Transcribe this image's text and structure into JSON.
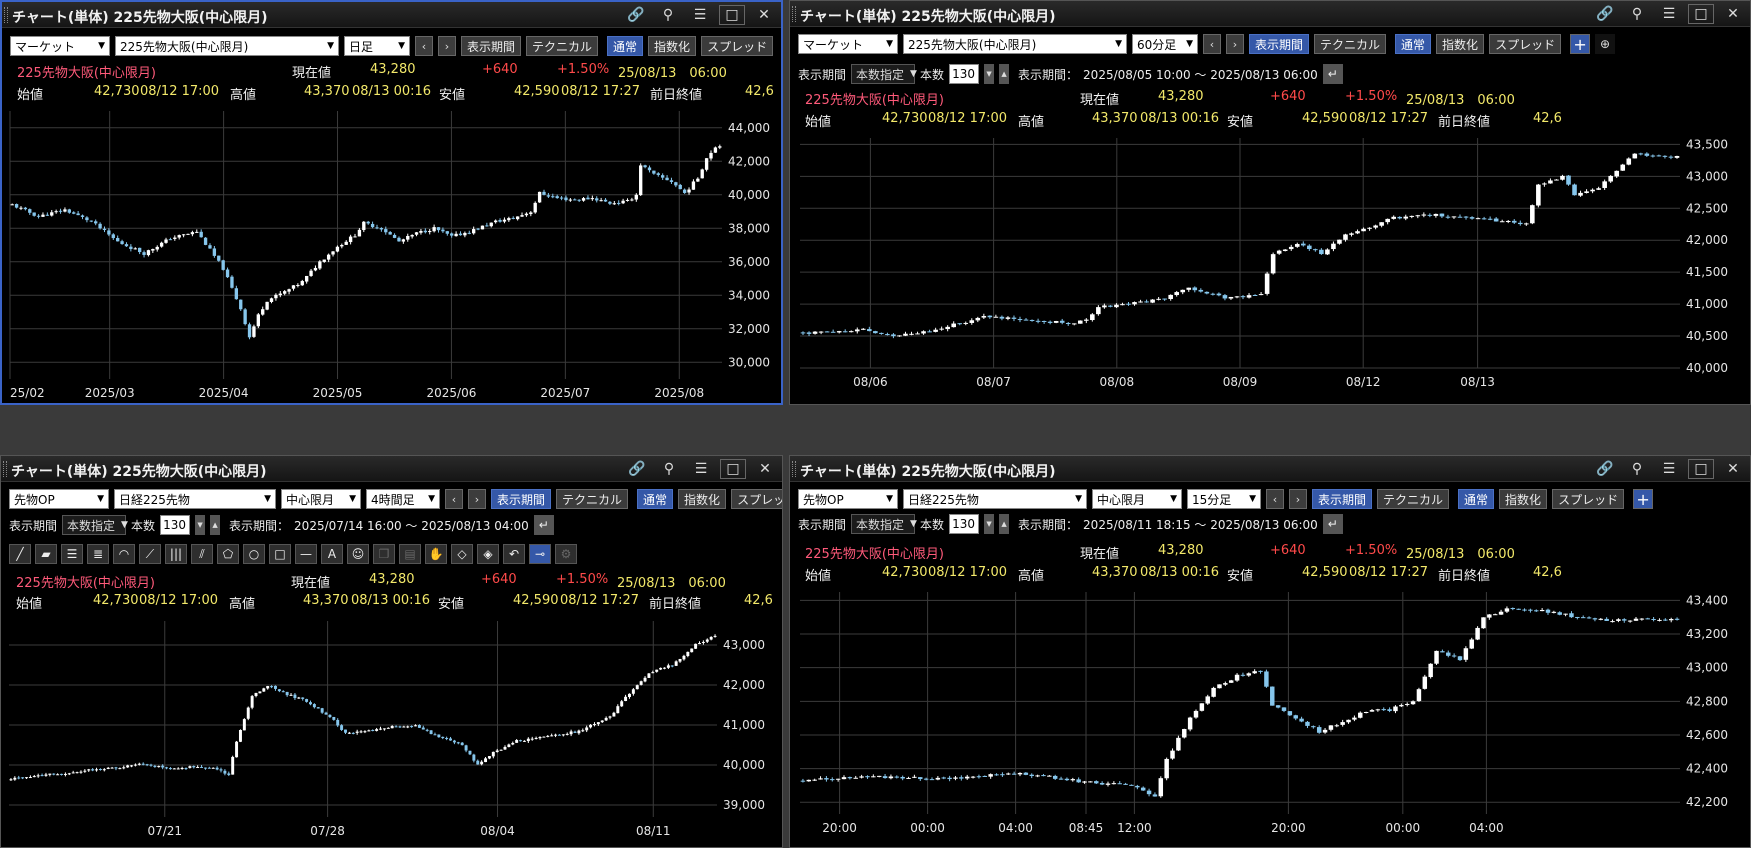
{
  "common": {
    "window_title": "チャート(単体) 225先物大阪(中心限月)",
    "instrument": "225先物大阪(中心限月)",
    "labels": {
      "current": "現在値",
      "open": "始値",
      "high": "高値",
      "low": "安値",
      "prev_close": "前日終値",
      "period": "表示期間",
      "range_select": "本数指定",
      "bars": "本数",
      "period_range": "表示期間："
    },
    "buttons": {
      "period": "表示期間",
      "technical": "テクニカル",
      "normal": "通常",
      "index": "指数化",
      "spread": "スプレッド"
    },
    "quote": {
      "current": "43,280",
      "change": "+640",
      "change_pct": "+1.50%",
      "datetime": "25/08/13　06:00",
      "open": "42,730",
      "open_time": "08/12 17:00",
      "high": "43,370",
      "high_time": "08/13 00:16",
      "low": "42,590",
      "low_time": "08/12 17:27",
      "prev_close": "42,6"
    },
    "colors": {
      "up": "#ffffff",
      "down": "#86c6ec",
      "grid": "#3b3b3b",
      "active_border": "#3a63c8",
      "accent": "#3558a8"
    }
  },
  "panels": [
    {
      "id": "daily",
      "market": "マーケット",
      "symbol": "225先物大阪(中心限月)",
      "interval": "日足",
      "chart_data": {
        "type": "candlestick",
        "x_ticks": [
          "25/02",
          "2025/03",
          "2025/04",
          "2025/05",
          "2025/06",
          "2025/07",
          "2025/08"
        ],
        "y_ticks": [
          "44,000",
          "42,000",
          "40,000",
          "38,000",
          "36,000",
          "34,000",
          "32,000",
          "30,000"
        ],
        "ylim": [
          29000,
          45000
        ],
        "close_path": [
          [
            0,
            39400
          ],
          [
            6,
            38700
          ],
          [
            12,
            39100
          ],
          [
            18,
            38400
          ],
          [
            24,
            37200
          ],
          [
            30,
            36500
          ],
          [
            36,
            37400
          ],
          [
            42,
            37800
          ],
          [
            48,
            35600
          ],
          [
            52,
            33200
          ],
          [
            54,
            31500
          ],
          [
            56,
            32800
          ],
          [
            58,
            33700
          ],
          [
            62,
            34200
          ],
          [
            66,
            34800
          ],
          [
            70,
            36000
          ],
          [
            74,
            36900
          ],
          [
            78,
            37600
          ],
          [
            80,
            38300
          ],
          [
            84,
            38000
          ],
          [
            88,
            37200
          ],
          [
            92,
            37700
          ],
          [
            96,
            38000
          ],
          [
            100,
            37500
          ],
          [
            104,
            37800
          ],
          [
            110,
            38400
          ],
          [
            114,
            38600
          ],
          [
            118,
            39000
          ],
          [
            120,
            40100
          ],
          [
            124,
            39800
          ],
          [
            128,
            39700
          ],
          [
            132,
            39800
          ],
          [
            136,
            39500
          ],
          [
            140,
            39600
          ],
          [
            142,
            40000
          ],
          [
            143,
            41800
          ],
          [
            146,
            41200
          ],
          [
            150,
            40800
          ],
          [
            153,
            40100
          ],
          [
            156,
            41000
          ],
          [
            158,
            42200
          ],
          [
            160,
            42900
          ]
        ]
      }
    },
    {
      "id": "h60",
      "market": "マーケット",
      "symbol": "225先物大阪(中心限月)",
      "interval": "60分足",
      "bars": "130",
      "range_text": "2025/08/05 10:00 ～ 2025/08/13 06:00",
      "chart_data": {
        "type": "candlestick",
        "x_ticks": [
          "08/06",
          "08/07",
          "08/08",
          "08/09",
          "08/12",
          "08/13"
        ],
        "y_ticks": [
          "43,500",
          "43,000",
          "42,500",
          "42,000",
          "41,500",
          "41,000",
          "40,500",
          "40,000"
        ],
        "ylim": [
          40000,
          43600
        ],
        "close_path": [
          [
            0,
            40550
          ],
          [
            10,
            40600
          ],
          [
            16,
            40500
          ],
          [
            22,
            40600
          ],
          [
            26,
            40700
          ],
          [
            30,
            40800
          ],
          [
            38,
            40750
          ],
          [
            44,
            40700
          ],
          [
            47,
            40750
          ],
          [
            49,
            40950
          ],
          [
            54,
            41000
          ],
          [
            60,
            41100
          ],
          [
            64,
            41250
          ],
          [
            70,
            41100
          ],
          [
            76,
            41150
          ],
          [
            78,
            41800
          ],
          [
            82,
            41950
          ],
          [
            86,
            41800
          ],
          [
            90,
            42100
          ],
          [
            94,
            42200
          ],
          [
            98,
            42350
          ],
          [
            104,
            42400
          ],
          [
            110,
            42350
          ],
          [
            116,
            42300
          ],
          [
            120,
            42250
          ],
          [
            122,
            42850
          ],
          [
            126,
            43000
          ],
          [
            128,
            42700
          ],
          [
            132,
            42800
          ],
          [
            134,
            43000
          ],
          [
            136,
            43200
          ],
          [
            138,
            43350
          ],
          [
            142,
            43300
          ],
          [
            145,
            43300
          ]
        ]
      }
    },
    {
      "id": "h4",
      "market": "先物OP",
      "symbol": "日経225先物",
      "contract": "中心限月",
      "interval": "4時間足",
      "bars": "130",
      "range_text": "2025/07/14 16:00 ～ 2025/08/13 04:00",
      "tools": [
        "line-tool",
        "ray-tool",
        "hline-tool",
        "channel-tool",
        "arc-tool",
        "fan-tool",
        "fib-tool",
        "pitchfork-tool",
        "pentagon-tool",
        "circle-tool",
        "rect-tool",
        "hbar-tool",
        "text-tool",
        "icon-tool",
        "copy-tool",
        "paste-tool",
        "hand-tool",
        "erase-tool",
        "erase-all-tool",
        "undo-tool",
        "magnet-tool",
        "settings-tool"
      ],
      "icon_tool_label": "A",
      "chart_data": {
        "type": "candlestick",
        "x_ticks": [
          "07/21",
          "07/28",
          "08/04",
          "08/11"
        ],
        "y_ticks": [
          "43,000",
          "42,000",
          "41,000",
          "40,000",
          "39,000"
        ],
        "ylim": [
          38700,
          43600
        ],
        "close_path": [
          [
            0,
            39650
          ],
          [
            8,
            39750
          ],
          [
            16,
            39800
          ],
          [
            22,
            39900
          ],
          [
            28,
            39950
          ],
          [
            34,
            40050
          ],
          [
            40,
            39900
          ],
          [
            46,
            39950
          ],
          [
            52,
            39950
          ],
          [
            56,
            39750
          ],
          [
            58,
            40600
          ],
          [
            62,
            41700
          ],
          [
            66,
            42000
          ],
          [
            70,
            41800
          ],
          [
            76,
            41600
          ],
          [
            82,
            41200
          ],
          [
            86,
            40800
          ],
          [
            92,
            40850
          ],
          [
            98,
            40950
          ],
          [
            104,
            41000
          ],
          [
            110,
            40700
          ],
          [
            116,
            40500
          ],
          [
            120,
            40000
          ],
          [
            124,
            40300
          ],
          [
            130,
            40600
          ],
          [
            138,
            40700
          ],
          [
            146,
            40850
          ],
          [
            154,
            41200
          ],
          [
            158,
            41700
          ],
          [
            164,
            42300
          ],
          [
            170,
            42500
          ],
          [
            176,
            43000
          ],
          [
            180,
            43200
          ]
        ]
      }
    },
    {
      "id": "m15",
      "market": "先物OP",
      "symbol": "日経225先物",
      "contract": "中心限月",
      "interval": "15分足",
      "bars": "130",
      "range_text": "2025/08/11 18:15 ～ 2025/08/13 06:00",
      "chart_data": {
        "type": "candlestick",
        "x_ticks": [
          "20:00",
          "00:00",
          "04:00",
          "08:45",
          "12:00",
          "20:00",
          "00:00",
          "04:00"
        ],
        "y_ticks": [
          "43,400",
          "43,200",
          "43,000",
          "42,800",
          "42,600",
          "42,400",
          "42,200"
        ],
        "ylim": [
          42130,
          43450
        ],
        "close_path": [
          [
            0,
            42330
          ],
          [
            12,
            42350
          ],
          [
            24,
            42340
          ],
          [
            36,
            42370
          ],
          [
            42,
            42350
          ],
          [
            48,
            42320
          ],
          [
            56,
            42300
          ],
          [
            60,
            42230
          ],
          [
            62,
            42450
          ],
          [
            66,
            42700
          ],
          [
            70,
            42880
          ],
          [
            74,
            42950
          ],
          [
            78,
            42980
          ],
          [
            80,
            42780
          ],
          [
            84,
            42700
          ],
          [
            88,
            42620
          ],
          [
            92,
            42680
          ],
          [
            96,
            42740
          ],
          [
            100,
            42750
          ],
          [
            104,
            42800
          ],
          [
            108,
            43100
          ],
          [
            112,
            43050
          ],
          [
            116,
            43300
          ],
          [
            120,
            43350
          ],
          [
            126,
            43340
          ],
          [
            132,
            43300
          ],
          [
            138,
            43280
          ],
          [
            144,
            43290
          ],
          [
            148,
            43290
          ]
        ]
      }
    }
  ]
}
